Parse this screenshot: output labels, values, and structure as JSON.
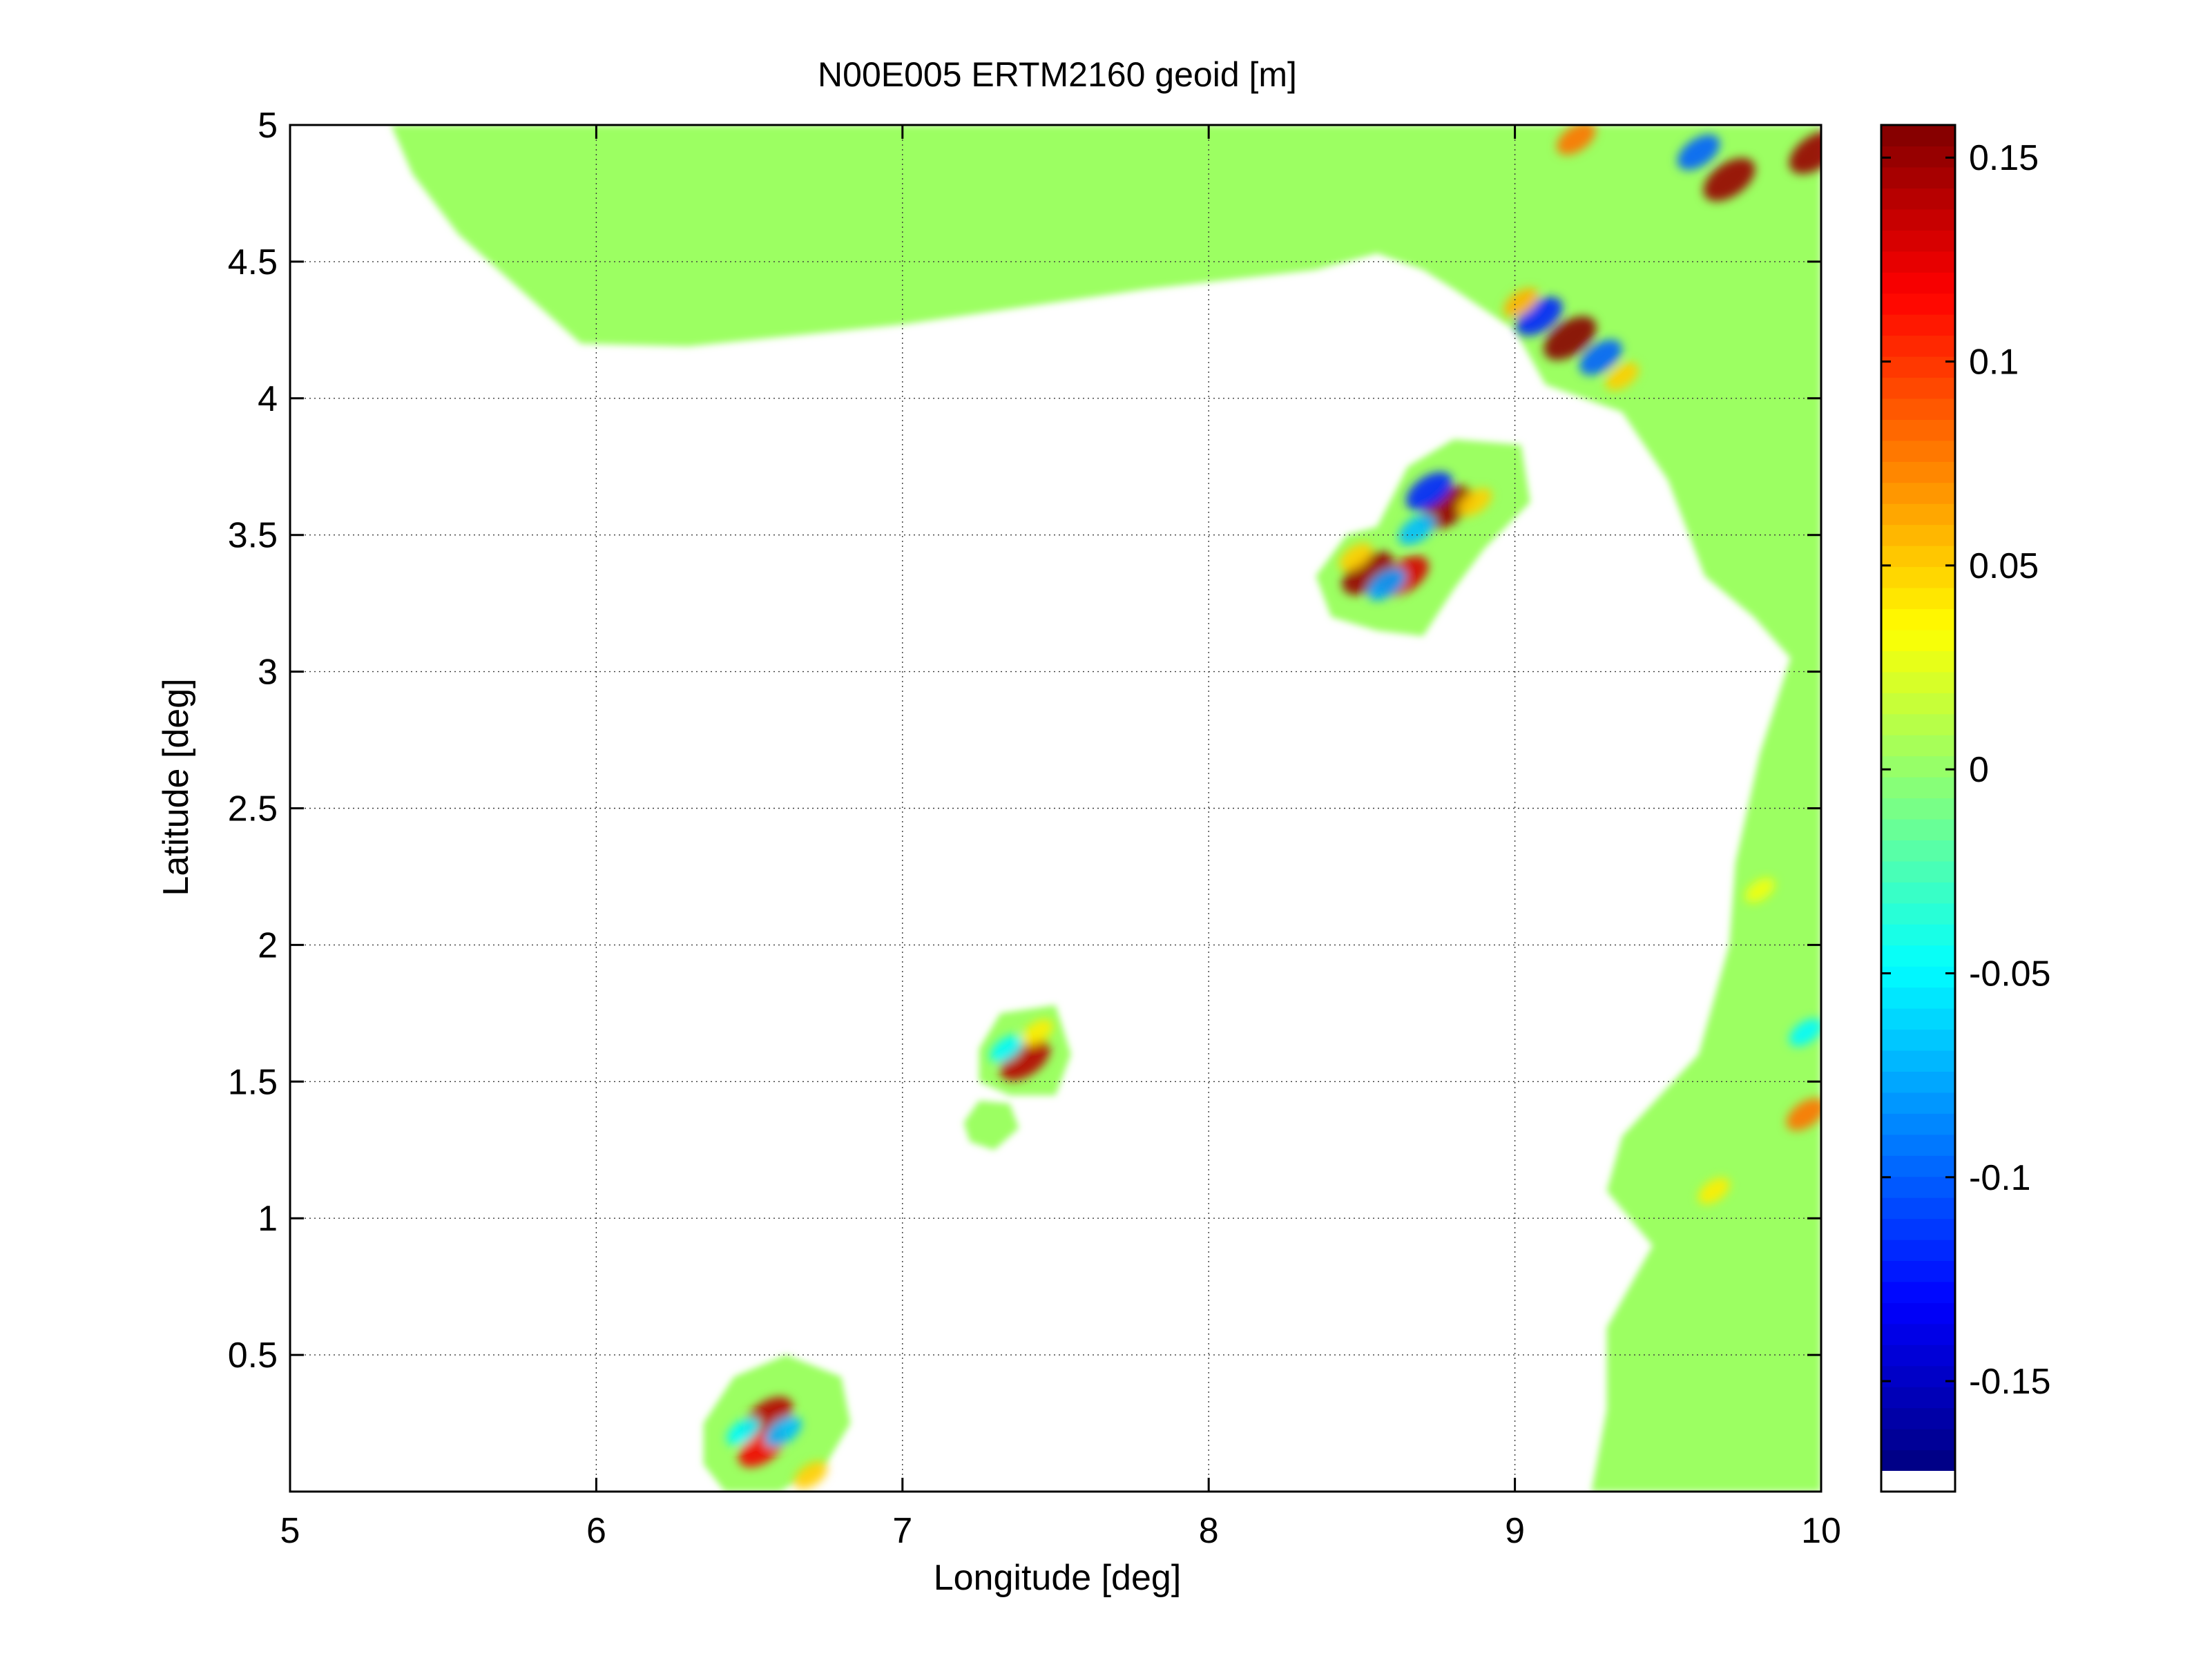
{
  "chart_data": {
    "type": "heatmap",
    "title": "N00E005 ERTM2160 geoid [m]",
    "xlabel": "Longitude [deg]",
    "ylabel": "Latitude [deg]",
    "xlim": [
      5,
      10
    ],
    "ylim": [
      0,
      5
    ],
    "xticks": [
      5,
      6,
      7,
      8,
      9,
      10
    ],
    "xtick_labels": [
      "5",
      "6",
      "7",
      "8",
      "9",
      "10"
    ],
    "yticks": [
      0.5,
      1,
      1.5,
      2,
      2.5,
      3,
      3.5,
      4,
      4.5,
      5
    ],
    "ytick_labels": [
      "0.5",
      "1",
      "1.5",
      "2",
      "2.5",
      "3",
      "3.5",
      "4",
      "4.5",
      "5"
    ],
    "grid": true,
    "colormap": "jet",
    "nodata_color": "#ffffff",
    "background_value_color": "#9cff62",
    "colorbar": {
      "location": "right",
      "clim": [
        -0.172,
        0.158
      ],
      "ticks": [
        -0.15,
        -0.1,
        -0.05,
        0,
        0.05,
        0.1,
        0.15
      ],
      "tick_labels": [
        "-0.15",
        "-0.1",
        "-0.05",
        "0",
        "0.05",
        "0.1",
        "0.15"
      ]
    },
    "coverage_regions": [
      {
        "name": "northern coast",
        "polygon": [
          [
            5.33,
            5
          ],
          [
            5.4,
            4.82
          ],
          [
            5.55,
            4.6
          ],
          [
            5.75,
            4.4
          ],
          [
            5.95,
            4.2
          ],
          [
            6.3,
            4.19
          ],
          [
            7,
            4.27
          ],
          [
            7.8,
            4.4
          ],
          [
            8.35,
            4.47
          ],
          [
            8.55,
            4.53
          ],
          [
            8.7,
            4.47
          ],
          [
            8.8,
            4.4
          ],
          [
            9.0,
            4.25
          ],
          [
            9.1,
            4.05
          ],
          [
            9.35,
            3.95
          ],
          [
            9.5,
            3.7
          ],
          [
            9.62,
            3.35
          ],
          [
            9.78,
            3.2
          ],
          [
            9.9,
            3.05
          ],
          [
            9.8,
            2.7
          ],
          [
            9.72,
            2.3
          ],
          [
            9.7,
            2.0
          ],
          [
            9.6,
            1.6
          ],
          [
            9.35,
            1.3
          ],
          [
            9.3,
            1.1
          ],
          [
            9.45,
            0.9
          ],
          [
            9.3,
            0.6
          ],
          [
            9.3,
            0.3
          ],
          [
            9.25,
            0
          ],
          [
            10,
            0
          ],
          [
            10,
            5
          ]
        ]
      },
      {
        "name": "island group near 8.7E 3.5N",
        "polygon": [
          [
            8.35,
            3.35
          ],
          [
            8.45,
            3.5
          ],
          [
            8.55,
            3.53
          ],
          [
            8.65,
            3.75
          ],
          [
            8.8,
            3.85
          ],
          [
            9.02,
            3.83
          ],
          [
            9.05,
            3.62
          ],
          [
            8.9,
            3.45
          ],
          [
            8.8,
            3.3
          ],
          [
            8.7,
            3.13
          ],
          [
            8.55,
            3.15
          ],
          [
            8.4,
            3.2
          ]
        ]
      },
      {
        "name": "island near 7.4E 1.6N",
        "polygon": [
          [
            7.25,
            1.62
          ],
          [
            7.32,
            1.75
          ],
          [
            7.5,
            1.78
          ],
          [
            7.55,
            1.6
          ],
          [
            7.5,
            1.45
          ],
          [
            7.35,
            1.45
          ],
          [
            7.25,
            1.5
          ]
        ]
      },
      {
        "name": "islet near 7.3E 1.35N",
        "polygon": [
          [
            7.2,
            1.35
          ],
          [
            7.25,
            1.43
          ],
          [
            7.35,
            1.42
          ],
          [
            7.38,
            1.33
          ],
          [
            7.3,
            1.25
          ],
          [
            7.22,
            1.28
          ]
        ]
      },
      {
        "name": "island near 6.6E 0.25N",
        "polygon": [
          [
            6.35,
            0.25
          ],
          [
            6.45,
            0.42
          ],
          [
            6.62,
            0.5
          ],
          [
            6.8,
            0.42
          ],
          [
            6.83,
            0.25
          ],
          [
            6.75,
            0.1
          ],
          [
            6.6,
            0.0
          ],
          [
            6.42,
            0.0
          ],
          [
            6.35,
            0.1
          ]
        ]
      }
    ],
    "anomalies": [
      {
        "lon": 9.18,
        "lat": 4.22,
        "value": 0.155
      },
      {
        "lon": 9.08,
        "lat": 4.3,
        "value": -0.12
      },
      {
        "lon": 9.28,
        "lat": 4.15,
        "value": -0.1
      },
      {
        "lon": 9.02,
        "lat": 4.35,
        "value": 0.06
      },
      {
        "lon": 9.35,
        "lat": 4.08,
        "value": 0.05
      },
      {
        "lon": 9.7,
        "lat": 4.8,
        "value": 0.15
      },
      {
        "lon": 9.98,
        "lat": 4.9,
        "value": 0.15
      },
      {
        "lon": 9.6,
        "lat": 4.9,
        "value": -0.1
      },
      {
        "lon": 9.2,
        "lat": 4.95,
        "value": 0.08
      },
      {
        "lon": 8.78,
        "lat": 3.6,
        "value": 0.15
      },
      {
        "lon": 8.72,
        "lat": 3.66,
        "value": -0.12
      },
      {
        "lon": 8.68,
        "lat": 3.52,
        "value": -0.07
      },
      {
        "lon": 8.87,
        "lat": 3.62,
        "value": 0.05
      },
      {
        "lon": 8.52,
        "lat": 3.36,
        "value": 0.15
      },
      {
        "lon": 8.64,
        "lat": 3.35,
        "value": 0.13
      },
      {
        "lon": 8.58,
        "lat": 3.32,
        "value": -0.08
      },
      {
        "lon": 8.48,
        "lat": 3.42,
        "value": 0.05
      },
      {
        "lon": 7.4,
        "lat": 1.58,
        "value": 0.14
      },
      {
        "lon": 7.34,
        "lat": 1.62,
        "value": -0.05
      },
      {
        "lon": 7.44,
        "lat": 1.68,
        "value": 0.04
      },
      {
        "lon": 6.56,
        "lat": 0.27,
        "value": 0.14
      },
      {
        "lon": 6.54,
        "lat": 0.16,
        "value": 0.12
      },
      {
        "lon": 6.61,
        "lat": 0.22,
        "value": -0.07
      },
      {
        "lon": 6.48,
        "lat": 0.22,
        "value": -0.05
      },
      {
        "lon": 6.7,
        "lat": 0.06,
        "value": 0.05
      },
      {
        "lon": 9.95,
        "lat": 1.38,
        "value": 0.08
      },
      {
        "lon": 9.95,
        "lat": 1.68,
        "value": -0.05
      },
      {
        "lon": 9.65,
        "lat": 1.1,
        "value": 0.04
      },
      {
        "lon": 9.8,
        "lat": 2.2,
        "value": 0.03
      }
    ]
  }
}
